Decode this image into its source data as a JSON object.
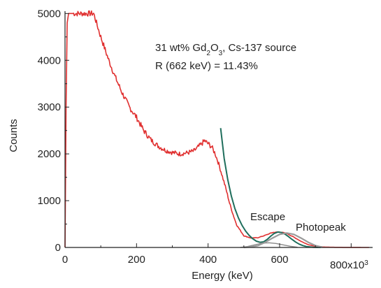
{
  "chart_data": {
    "type": "line",
    "title": "",
    "xlabel": "Energy (keV)",
    "ylabel": "Counts",
    "xlim": [
      0,
      860
    ],
    "ylim": [
      0,
      5050
    ],
    "x_ticks": [
      0,
      200,
      400,
      600
    ],
    "x_tick_labels": [
      "0",
      "200",
      "400",
      "600"
    ],
    "x_exponent_label": "800x10",
    "x_exponent_sup": "3",
    "y_ticks": [
      0,
      1000,
      2000,
      3000,
      4000,
      5000
    ],
    "y_tick_labels": [
      "0",
      "1000",
      "2000",
      "3000",
      "4000",
      "5000"
    ],
    "grid": false,
    "annotation": {
      "line1_a": "31 wt% Gd",
      "line1_sub1": "2",
      "line1_b": "O",
      "line1_sub2": "3",
      "line1_c": ", Cs-137 source",
      "line2": "R (662 keV) = 11.43%"
    },
    "peak_labels": {
      "escape": "Escape",
      "photopeak": "Photopeak"
    },
    "colors": {
      "spectrum": "#e03030",
      "fit": "#1f6e5c",
      "escape": "#888888",
      "photopeak": "#9a9a9a",
      "axis": "#222222"
    },
    "series": [
      {
        "role": "spectrum",
        "x": [
          0,
          3,
          6,
          10,
          80,
          100,
          120,
          140,
          160,
          180,
          200,
          220,
          240,
          260,
          280,
          300,
          320,
          340,
          360,
          380,
          390,
          400,
          410,
          420,
          430,
          440,
          450,
          460,
          470,
          480,
          500,
          520,
          540,
          560,
          580,
          600,
          620,
          640,
          660,
          680,
          700,
          720,
          740,
          760,
          780,
          800,
          820,
          850
        ],
        "y": [
          0,
          3000,
          4800,
          5000,
          5000,
          4500,
          4050,
          3650,
          3300,
          3000,
          2780,
          2500,
          2300,
          2170,
          2080,
          2030,
          2000,
          2020,
          2060,
          2200,
          2280,
          2220,
          2150,
          2000,
          1780,
          1520,
          1250,
          950,
          700,
          480,
          250,
          200,
          210,
          260,
          320,
          330,
          300,
          220,
          130,
          60,
          25,
          10,
          5,
          3,
          2,
          1,
          1,
          0
        ]
      },
      {
        "role": "fit",
        "x": [
          435,
          445,
          455,
          465,
          475,
          485,
          495,
          505,
          515,
          525,
          535,
          545,
          555,
          565,
          575,
          585,
          595,
          605,
          615,
          625,
          635,
          645,
          655,
          665,
          675,
          685,
          695,
          705,
          715
        ],
        "y": [
          2550,
          1900,
          1450,
          1100,
          830,
          630,
          470,
          350,
          255,
          185,
          135,
          110,
          120,
          170,
          240,
          300,
          330,
          320,
          285,
          230,
          170,
          115,
          70,
          40,
          20,
          10,
          5,
          2,
          1
        ]
      },
      {
        "role": "escape",
        "x": [
          490,
          510,
          530,
          550,
          570,
          590,
          610,
          630,
          650
        ],
        "y": [
          0,
          20,
          55,
          90,
          100,
          85,
          55,
          25,
          5
        ]
      },
      {
        "role": "photopeak",
        "x": [
          500,
          520,
          540,
          560,
          580,
          600,
          620,
          640,
          660,
          680,
          700,
          720
        ],
        "y": [
          0,
          10,
          40,
          110,
          200,
          280,
          310,
          280,
          200,
          110,
          40,
          5
        ]
      }
    ]
  }
}
